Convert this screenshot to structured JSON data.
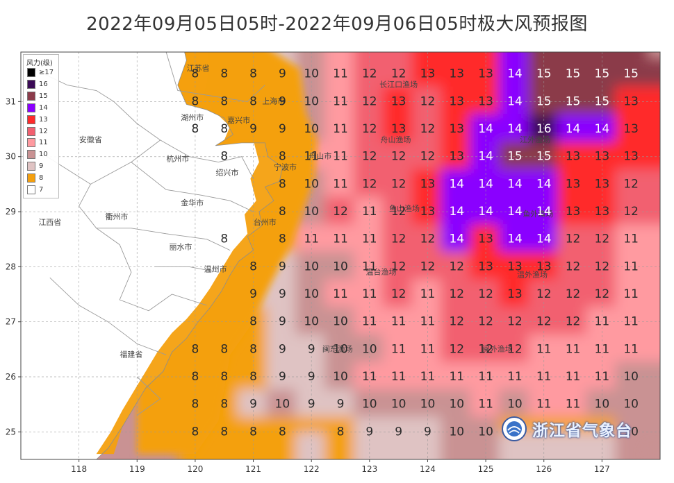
{
  "title": "2022年09月05日05时-2022年09月06日05时极大风预报图",
  "legend": {
    "title": "风力(级)",
    "items": [
      {
        "label": "≥17",
        "color": "#000000"
      },
      {
        "label": "16",
        "color": "#3a0a55"
      },
      {
        "label": "15",
        "color": "#8b3b4a"
      },
      {
        "label": "14",
        "color": "#8a00ff"
      },
      {
        "label": "13",
        "color": "#ff2a2a"
      },
      {
        "label": "12",
        "color": "#f26070"
      },
      {
        "label": "11",
        "color": "#ff9aa0"
      },
      {
        "label": "10",
        "color": "#c99293"
      },
      {
        "label": "9",
        "color": "#dfc3c3"
      },
      {
        "label": "8",
        "color": "#f4a00f"
      },
      {
        "label": "7",
        "color": "#ffffff"
      }
    ]
  },
  "axes": {
    "lon_ticks": [
      "118",
      "119",
      "120",
      "121",
      "122",
      "123",
      "124",
      "125",
      "126",
      "127"
    ],
    "lat_ticks": [
      "25",
      "26",
      "27",
      "28",
      "29",
      "30",
      "31"
    ],
    "lon_range": [
      117,
      128
    ],
    "lat_range": [
      24.5,
      31.9
    ]
  },
  "place_labels": [
    {
      "text": "江苏省",
      "lon": 120.05,
      "lat": 31.6
    },
    {
      "text": "上海市",
      "lon": 121.35,
      "lat": 31.0
    },
    {
      "text": "湖州市",
      "lon": 119.95,
      "lat": 30.7
    },
    {
      "text": "嘉兴市",
      "lon": 120.75,
      "lat": 30.65
    },
    {
      "text": "安徽省",
      "lon": 118.2,
      "lat": 30.3
    },
    {
      "text": "杭州市",
      "lon": 119.7,
      "lat": 29.95
    },
    {
      "text": "宁波市",
      "lon": 121.55,
      "lat": 29.8
    },
    {
      "text": "舟山市",
      "lon": 122.15,
      "lat": 30.0
    },
    {
      "text": "绍兴市",
      "lon": 120.55,
      "lat": 29.7
    },
    {
      "text": "金华市",
      "lon": 119.95,
      "lat": 29.15
    },
    {
      "text": "衢州市",
      "lon": 118.65,
      "lat": 28.9
    },
    {
      "text": "江西省",
      "lon": 117.5,
      "lat": 28.8
    },
    {
      "text": "台州市",
      "lon": 121.2,
      "lat": 28.8
    },
    {
      "text": "丽水市",
      "lon": 119.75,
      "lat": 28.35
    },
    {
      "text": "温州市",
      "lon": 120.35,
      "lat": 27.95
    },
    {
      "text": "福建省",
      "lon": 118.9,
      "lat": 26.4
    },
    {
      "text": "长江口渔场",
      "lon": 123.5,
      "lat": 31.3
    },
    {
      "text": "舟山渔场",
      "lon": 123.45,
      "lat": 30.3
    },
    {
      "text": "江外渔场",
      "lon": 125.85,
      "lat": 30.3
    },
    {
      "text": "鱼山渔场",
      "lon": 123.6,
      "lat": 29.05
    },
    {
      "text": "鱼外渔场",
      "lon": 125.9,
      "lat": 28.95
    },
    {
      "text": "温台渔场",
      "lon": 123.2,
      "lat": 27.9
    },
    {
      "text": "温外渔场",
      "lon": 125.8,
      "lat": 27.85
    },
    {
      "text": "闽东渔场",
      "lon": 122.45,
      "lat": 26.5
    },
    {
      "text": "闽外渔场",
      "lon": 125.2,
      "lat": 26.5
    }
  ],
  "grid": {
    "lon_start": 120.0,
    "lat_start": 31.5,
    "step": 0.5,
    "rows": [
      [
        "8",
        "8",
        "8",
        "9",
        "10",
        "11",
        "12",
        "12",
        "13",
        "13",
        "13",
        "14",
        "15",
        "15",
        "15",
        "15"
      ],
      [
        "8",
        "8",
        "8",
        "9",
        "10",
        "11",
        "12",
        "13",
        "12",
        "13",
        "13",
        "14",
        "15",
        "15",
        "15",
        "13"
      ],
      [
        "8",
        "8",
        "9",
        "9",
        "10",
        "11",
        "12",
        "13",
        "12",
        "13",
        "14",
        "14",
        "16",
        "14",
        "14",
        "13"
      ],
      [
        "",
        "8",
        "",
        "8",
        "11",
        "11",
        "12",
        "12",
        "12",
        "13",
        "14",
        "15",
        "15",
        "13",
        "13",
        "13"
      ],
      [
        "",
        "",
        "",
        "8",
        "10",
        "11",
        "12",
        "12",
        "13",
        "14",
        "14",
        "14",
        "14",
        "13",
        "13",
        "12"
      ],
      [
        "",
        "",
        "",
        "8",
        "10",
        "12",
        "11",
        "12",
        "13",
        "14",
        "14",
        "14",
        "14",
        "13",
        "13",
        "12"
      ],
      [
        "",
        "8",
        "",
        "8",
        "11",
        "11",
        "11",
        "12",
        "12",
        "14",
        "13",
        "14",
        "14",
        "12",
        "12",
        "11"
      ],
      [
        "",
        "",
        "8",
        "9",
        "10",
        "10",
        "11",
        "12",
        "12",
        "12",
        "13",
        "13",
        "13",
        "12",
        "12",
        "11"
      ],
      [
        "",
        "",
        "9",
        "9",
        "10",
        "11",
        "11",
        "12",
        "11",
        "12",
        "12",
        "13",
        "12",
        "12",
        "12",
        "11"
      ],
      [
        "",
        "",
        "8",
        "9",
        "10",
        "10",
        "11",
        "11",
        "11",
        "12",
        "12",
        "12",
        "12",
        "12",
        "11",
        "11"
      ],
      [
        "8",
        "8",
        "8",
        "9",
        "9",
        "10",
        "10",
        "11",
        "11",
        "12",
        "12",
        "12",
        "11",
        "11",
        "11",
        "11"
      ],
      [
        "8",
        "8",
        "8",
        "9",
        "9",
        "10",
        "11",
        "11",
        "11",
        "11",
        "11",
        "11",
        "11",
        "11",
        "11",
        "10"
      ],
      [
        "8",
        "8",
        "9",
        "10",
        "9",
        "9",
        "10",
        "10",
        "10",
        "10",
        "11",
        "10",
        "11",
        "11",
        "10",
        "10"
      ],
      [
        "8",
        "8",
        "8",
        "8",
        "",
        "8",
        "9",
        "9",
        "9",
        "10",
        "10",
        "",
        "",
        "",
        "",
        "10"
      ]
    ]
  },
  "logo": {
    "text": "浙江省气象台",
    "icon": "weather-bureau-emblem-icon"
  }
}
